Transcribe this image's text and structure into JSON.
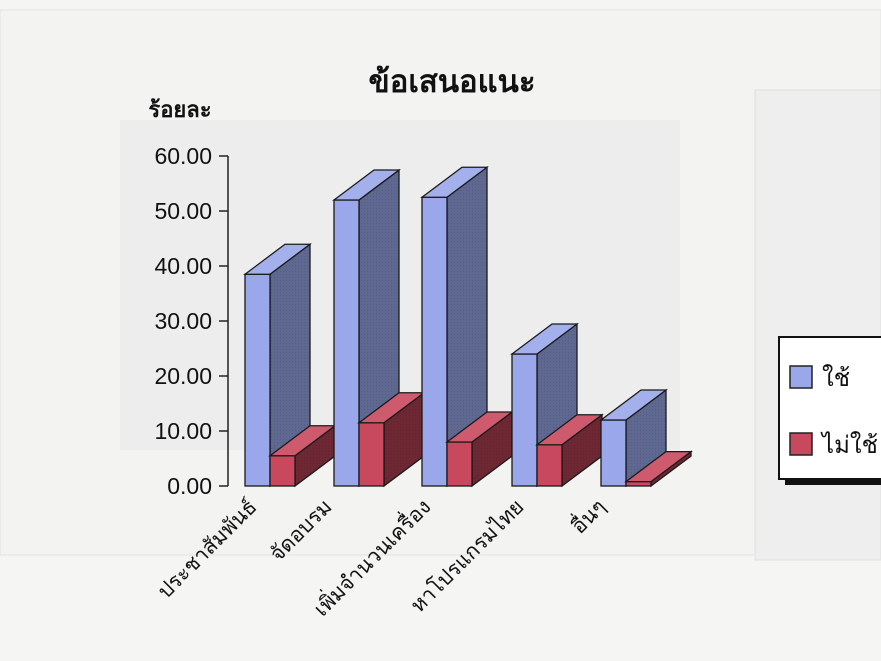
{
  "chart_data": {
    "type": "bar",
    "title": "ข้อเสนอแนะ",
    "ylabel": "ร้อยละ",
    "xlabel": "",
    "ylim": [
      0,
      60
    ],
    "yticks": [
      "0.00",
      "10.00",
      "20.00",
      "30.00",
      "40.00",
      "50.00",
      "60.00"
    ],
    "categories": [
      "ประชาสัมพันธ์",
      "จัดอบรม",
      "เพิ่มจำนวนเครื่อง",
      "หาโปรแกรมไทย",
      "อื่นๆ"
    ],
    "series": [
      {
        "name": "ใช้",
        "values": [
          38.5,
          52.0,
          52.5,
          24.0,
          12.0
        ],
        "color": "#9aa7ea"
      },
      {
        "name": "ไม่ใช้",
        "values": [
          5.5,
          11.5,
          8.0,
          7.5,
          0.8
        ],
        "color": "#c8485e"
      }
    ],
    "grid": false,
    "legend": "right",
    "three_d": true
  }
}
